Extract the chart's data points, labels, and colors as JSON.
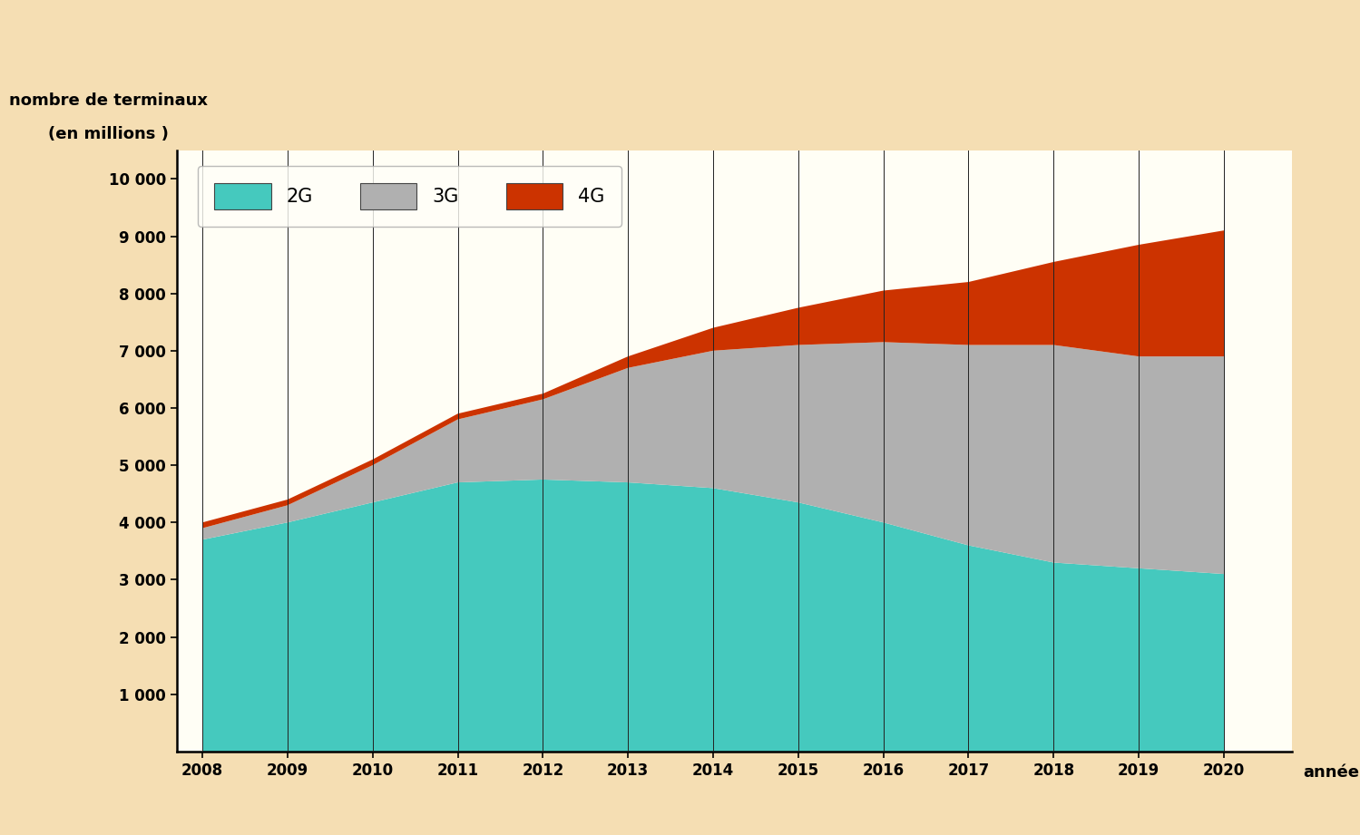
{
  "years": [
    2008,
    2009,
    2010,
    2011,
    2012,
    2013,
    2014,
    2015,
    2016,
    2017,
    2018,
    2019,
    2020
  ],
  "g2": [
    3700,
    4000,
    4350,
    4700,
    4750,
    4700,
    4600,
    4350,
    4000,
    3600,
    3300,
    3200,
    3100
  ],
  "g3": [
    200,
    300,
    650,
    1100,
    1400,
    2000,
    2400,
    2750,
    3150,
    3500,
    3800,
    3700,
    3800
  ],
  "g4": [
    100,
    100,
    100,
    100,
    100,
    200,
    400,
    650,
    900,
    1100,
    1450,
    1950,
    2200
  ],
  "color_2g": "#45c9be",
  "color_3g": "#b0b0b0",
  "color_4g": "#cc3300",
  "color_bg_outer": "#f5deb3",
  "color_bg_plot": "#fffef5",
  "color_legend_bg": "#fffff8",
  "ylabel_line1": "nombre de terminaux",
  "ylabel_line2": "(en millions )",
  "xlabel": "année",
  "ylim": [
    0,
    10500
  ],
  "yticks": [
    1000,
    2000,
    3000,
    4000,
    5000,
    6000,
    7000,
    8000,
    9000,
    10000
  ],
  "ytick_labels": [
    "1 000",
    "2 000",
    "3 000",
    "4 000",
    "5 000",
    "6 000",
    "7 000",
    "8 000",
    "9 000",
    "10 000"
  ],
  "legend_labels": [
    "2G",
    "3G",
    "4G"
  ],
  "grid_color": "#222222",
  "grid_linewidth": 0.7
}
